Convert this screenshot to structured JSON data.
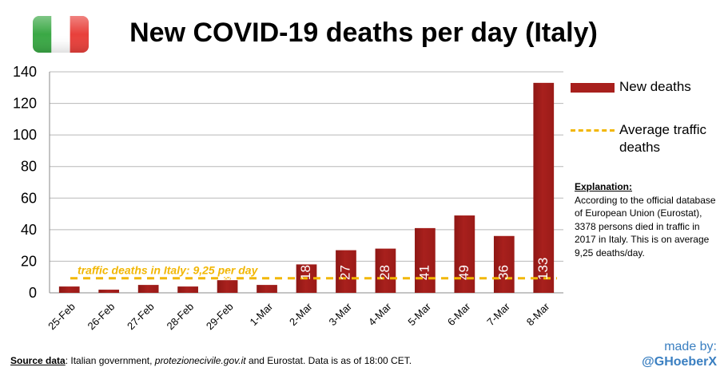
{
  "page": {
    "title": "New COVID-19 deaths per day (Italy)",
    "flag_icon": "italy-flag-icon",
    "flag_colors": [
      "#3aa845",
      "#ffffff",
      "#e8403b"
    ],
    "legend": {
      "bars_label": "New deaths",
      "line_label": "Average traffic deaths"
    },
    "explanation": {
      "heading": "Explanation:",
      "body": "According to the official database of European Union (Eurostat), 3378 persons died in traffic in 2017  in Italy. This is on average 9,25  deaths/day."
    },
    "source": {
      "label": "Source data",
      "text_before": ": Italian government, ",
      "site": "protezionecivile.gov.it",
      "text_after": " and Eurostat. Data is as of 18:00  CET."
    },
    "credit": {
      "line1": "made by:",
      "handle": "@GHoeberX"
    }
  },
  "chart_data": {
    "type": "bar",
    "categories": [
      "25-Feb",
      "26-Feb",
      "27-Feb",
      "28-Feb",
      "29-Feb",
      "1-Mar",
      "2-Mar",
      "3-Mar",
      "4-Mar",
      "5-Mar",
      "6-Mar",
      "7-Mar",
      "8-Mar"
    ],
    "series": [
      {
        "name": "New deaths",
        "values": [
          4,
          2,
          5,
          4,
          8,
          5,
          18,
          27,
          28,
          41,
          49,
          36,
          133
        ],
        "data_labels": [
          "",
          "",
          "",
          "",
          "8",
          "",
          "18",
          "27",
          "28",
          "41",
          "49",
          "36",
          "133"
        ],
        "color": "#a8201d"
      }
    ],
    "reference_line": {
      "name": "Average traffic deaths",
      "value": 9.25,
      "label": "traffic deaths in Italy: 9,25 per day",
      "color": "#f2b705"
    },
    "ylim": [
      0,
      140
    ],
    "yticks": [
      0,
      20,
      40,
      60,
      80,
      100,
      120,
      140
    ],
    "grid": "horizontal",
    "legend": "right",
    "xlabel": "",
    "ylabel": ""
  }
}
